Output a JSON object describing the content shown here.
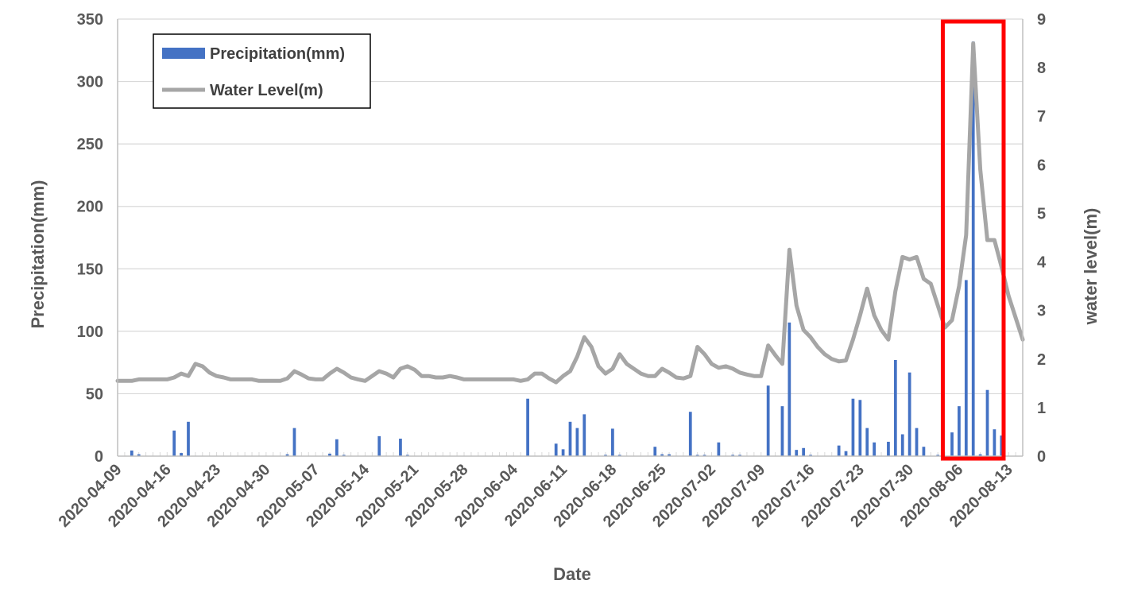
{
  "chart_data": {
    "type": "bar+line",
    "title": "",
    "xlabel": "Date",
    "ylabel_left": "Precipitation(mm)",
    "ylabel_right": "water level(m)",
    "ylim_left": [
      0,
      350
    ],
    "ylim_right": [
      0,
      9
    ],
    "yticks_left": [
      "0",
      "50",
      "100",
      "150",
      "200",
      "250",
      "300",
      "350"
    ],
    "yticks_right": [
      "0",
      "1",
      "2",
      "3",
      "4",
      "5",
      "6",
      "7",
      "8",
      "9"
    ],
    "x_range": [
      "2020-04-09",
      "2020-08-15"
    ],
    "x_tick_labels": [
      "2020-04-09",
      "2020-04-16",
      "2020-04-23",
      "2020-04-30",
      "2020-05-07",
      "2020-05-14",
      "2020-05-21",
      "2020-05-28",
      "2020-06-04",
      "2020-06-11",
      "2020-06-18",
      "2020-06-25",
      "2020-07-02",
      "2020-07-09",
      "2020-07-16",
      "2020-07-23",
      "2020-07-30",
      "2020-08-06",
      "2020-08-13"
    ],
    "grid": "horizontal",
    "legend_position": "top-left",
    "highlight": {
      "from": "2020-08-04",
      "to": "2020-08-12",
      "color": "#ff0000"
    },
    "series": [
      {
        "name": "Precipitation(mm)",
        "kind": "bar",
        "axis": "left",
        "color": "#4472c4",
        "points": [
          [
            "2020-04-11",
            4.5
          ],
          [
            "2020-04-12",
            1.5
          ],
          [
            "2020-04-17",
            20.5
          ],
          [
            "2020-04-18",
            2.5
          ],
          [
            "2020-04-19",
            27.5
          ],
          [
            "2020-05-03",
            1.5
          ],
          [
            "2020-05-04",
            22.5
          ],
          [
            "2020-05-09",
            2.0
          ],
          [
            "2020-05-10",
            13.5
          ],
          [
            "2020-05-11",
            1.0
          ],
          [
            "2020-05-16",
            16.0
          ],
          [
            "2020-05-19",
            14.0
          ],
          [
            "2020-05-20",
            1.0
          ],
          [
            "2020-06-06",
            46.0
          ],
          [
            "2020-06-10",
            10.0
          ],
          [
            "2020-06-11",
            5.5
          ],
          [
            "2020-06-12",
            27.5
          ],
          [
            "2020-06-13",
            22.5
          ],
          [
            "2020-06-14",
            33.5
          ],
          [
            "2020-06-17",
            1.0
          ],
          [
            "2020-06-18",
            22.0
          ],
          [
            "2020-06-19",
            1.0
          ],
          [
            "2020-06-24",
            7.5
          ],
          [
            "2020-06-25",
            1.5
          ],
          [
            "2020-06-26",
            1.5
          ],
          [
            "2020-06-29",
            35.5
          ],
          [
            "2020-06-30",
            1.0
          ],
          [
            "2020-07-01",
            1.0
          ],
          [
            "2020-07-03",
            11.0
          ],
          [
            "2020-07-05",
            1.0
          ],
          [
            "2020-07-06",
            1.0
          ],
          [
            "2020-07-10",
            56.5
          ],
          [
            "2020-07-12",
            40.0
          ],
          [
            "2020-07-13",
            107.0
          ],
          [
            "2020-07-14",
            5.0
          ],
          [
            "2020-07-15",
            6.5
          ],
          [
            "2020-07-16",
            1.0
          ],
          [
            "2020-07-20",
            8.5
          ],
          [
            "2020-07-21",
            4.0
          ],
          [
            "2020-07-22",
            46.0
          ],
          [
            "2020-07-23",
            45.0
          ],
          [
            "2020-07-24",
            22.5
          ],
          [
            "2020-07-25",
            11.0
          ],
          [
            "2020-07-27",
            11.5
          ],
          [
            "2020-07-28",
            77.0
          ],
          [
            "2020-07-29",
            17.5
          ],
          [
            "2020-07-30",
            67.0
          ],
          [
            "2020-07-31",
            22.5
          ],
          [
            "2020-08-01",
            7.5
          ],
          [
            "2020-08-03",
            1.0
          ],
          [
            "2020-08-05",
            19.0
          ],
          [
            "2020-08-06",
            40.0
          ],
          [
            "2020-08-07",
            141.0
          ],
          [
            "2020-08-08",
            332.0
          ],
          [
            "2020-08-09",
            1.5
          ],
          [
            "2020-08-10",
            53.0
          ],
          [
            "2020-08-11",
            21.5
          ],
          [
            "2020-08-12",
            16.5
          ]
        ]
      },
      {
        "name": "Water Level(m)",
        "kind": "line",
        "axis": "right",
        "color": "#a6a6a6",
        "points": [
          [
            "2020-04-09",
            1.55
          ],
          [
            "2020-04-10",
            1.55
          ],
          [
            "2020-04-11",
            1.55
          ],
          [
            "2020-04-12",
            1.58
          ],
          [
            "2020-04-13",
            1.58
          ],
          [
            "2020-04-14",
            1.58
          ],
          [
            "2020-04-15",
            1.58
          ],
          [
            "2020-04-16",
            1.58
          ],
          [
            "2020-04-17",
            1.62
          ],
          [
            "2020-04-18",
            1.7
          ],
          [
            "2020-04-19",
            1.65
          ],
          [
            "2020-04-20",
            1.9
          ],
          [
            "2020-04-21",
            1.85
          ],
          [
            "2020-04-22",
            1.72
          ],
          [
            "2020-04-23",
            1.65
          ],
          [
            "2020-04-24",
            1.62
          ],
          [
            "2020-04-25",
            1.58
          ],
          [
            "2020-04-26",
            1.58
          ],
          [
            "2020-04-27",
            1.58
          ],
          [
            "2020-04-28",
            1.58
          ],
          [
            "2020-04-29",
            1.55
          ],
          [
            "2020-04-30",
            1.55
          ],
          [
            "2020-05-01",
            1.55
          ],
          [
            "2020-05-02",
            1.55
          ],
          [
            "2020-05-03",
            1.6
          ],
          [
            "2020-05-04",
            1.75
          ],
          [
            "2020-05-05",
            1.68
          ],
          [
            "2020-05-06",
            1.6
          ],
          [
            "2020-05-07",
            1.58
          ],
          [
            "2020-05-08",
            1.58
          ],
          [
            "2020-05-09",
            1.7
          ],
          [
            "2020-05-10",
            1.8
          ],
          [
            "2020-05-11",
            1.72
          ],
          [
            "2020-05-12",
            1.62
          ],
          [
            "2020-05-13",
            1.58
          ],
          [
            "2020-05-14",
            1.55
          ],
          [
            "2020-05-15",
            1.65
          ],
          [
            "2020-05-16",
            1.75
          ],
          [
            "2020-05-17",
            1.7
          ],
          [
            "2020-05-18",
            1.62
          ],
          [
            "2020-05-19",
            1.8
          ],
          [
            "2020-05-20",
            1.85
          ],
          [
            "2020-05-21",
            1.78
          ],
          [
            "2020-05-22",
            1.65
          ],
          [
            "2020-05-23",
            1.65
          ],
          [
            "2020-05-24",
            1.62
          ],
          [
            "2020-05-25",
            1.62
          ],
          [
            "2020-05-26",
            1.65
          ],
          [
            "2020-05-27",
            1.62
          ],
          [
            "2020-05-28",
            1.58
          ],
          [
            "2020-05-29",
            1.58
          ],
          [
            "2020-05-30",
            1.58
          ],
          [
            "2020-05-31",
            1.58
          ],
          [
            "2020-06-01",
            1.58
          ],
          [
            "2020-06-02",
            1.58
          ],
          [
            "2020-06-03",
            1.58
          ],
          [
            "2020-06-04",
            1.58
          ],
          [
            "2020-06-05",
            1.55
          ],
          [
            "2020-06-06",
            1.58
          ],
          [
            "2020-06-07",
            1.7
          ],
          [
            "2020-06-08",
            1.7
          ],
          [
            "2020-06-09",
            1.6
          ],
          [
            "2020-06-10",
            1.52
          ],
          [
            "2020-06-11",
            1.65
          ],
          [
            "2020-06-12",
            1.75
          ],
          [
            "2020-06-13",
            2.05
          ],
          [
            "2020-06-14",
            2.45
          ],
          [
            "2020-06-15",
            2.25
          ],
          [
            "2020-06-16",
            1.85
          ],
          [
            "2020-06-17",
            1.7
          ],
          [
            "2020-06-18",
            1.8
          ],
          [
            "2020-06-19",
            2.1
          ],
          [
            "2020-06-20",
            1.9
          ],
          [
            "2020-06-21",
            1.8
          ],
          [
            "2020-06-22",
            1.7
          ],
          [
            "2020-06-23",
            1.65
          ],
          [
            "2020-06-24",
            1.65
          ],
          [
            "2020-06-25",
            1.8
          ],
          [
            "2020-06-26",
            1.72
          ],
          [
            "2020-06-27",
            1.62
          ],
          [
            "2020-06-28",
            1.6
          ],
          [
            "2020-06-29",
            1.65
          ],
          [
            "2020-06-30",
            2.25
          ],
          [
            "2020-07-01",
            2.1
          ],
          [
            "2020-07-02",
            1.9
          ],
          [
            "2020-07-03",
            1.82
          ],
          [
            "2020-07-04",
            1.85
          ],
          [
            "2020-07-05",
            1.8
          ],
          [
            "2020-07-06",
            1.72
          ],
          [
            "2020-07-07",
            1.68
          ],
          [
            "2020-07-08",
            1.65
          ],
          [
            "2020-07-09",
            1.65
          ],
          [
            "2020-07-10",
            2.28
          ],
          [
            "2020-07-11",
            2.08
          ],
          [
            "2020-07-12",
            1.9
          ],
          [
            "2020-07-13",
            4.25
          ],
          [
            "2020-07-14",
            3.1
          ],
          [
            "2020-07-15",
            2.6
          ],
          [
            "2020-07-16",
            2.45
          ],
          [
            "2020-07-17",
            2.25
          ],
          [
            "2020-07-18",
            2.1
          ],
          [
            "2020-07-19",
            2.0
          ],
          [
            "2020-07-20",
            1.95
          ],
          [
            "2020-07-21",
            1.97
          ],
          [
            "2020-07-22",
            2.4
          ],
          [
            "2020-07-23",
            2.9
          ],
          [
            "2020-07-24",
            3.45
          ],
          [
            "2020-07-25",
            2.9
          ],
          [
            "2020-07-26",
            2.6
          ],
          [
            "2020-07-27",
            2.4
          ],
          [
            "2020-07-28",
            3.4
          ],
          [
            "2020-07-29",
            4.1
          ],
          [
            "2020-07-30",
            4.05
          ],
          [
            "2020-07-31",
            4.1
          ],
          [
            "2020-08-01",
            3.65
          ],
          [
            "2020-08-02",
            3.55
          ],
          [
            "2020-08-03",
            3.1
          ],
          [
            "2020-08-04",
            2.65
          ],
          [
            "2020-08-05",
            2.8
          ],
          [
            "2020-08-06",
            3.5
          ],
          [
            "2020-08-07",
            4.55
          ],
          [
            "2020-08-08",
            8.5
          ],
          [
            "2020-08-09",
            5.9
          ],
          [
            "2020-08-10",
            4.45
          ],
          [
            "2020-08-11",
            4.45
          ],
          [
            "2020-08-12",
            3.9
          ],
          [
            "2020-08-13",
            3.3
          ],
          [
            "2020-08-14",
            2.85
          ],
          [
            "2020-08-15",
            2.4
          ]
        ]
      }
    ]
  }
}
